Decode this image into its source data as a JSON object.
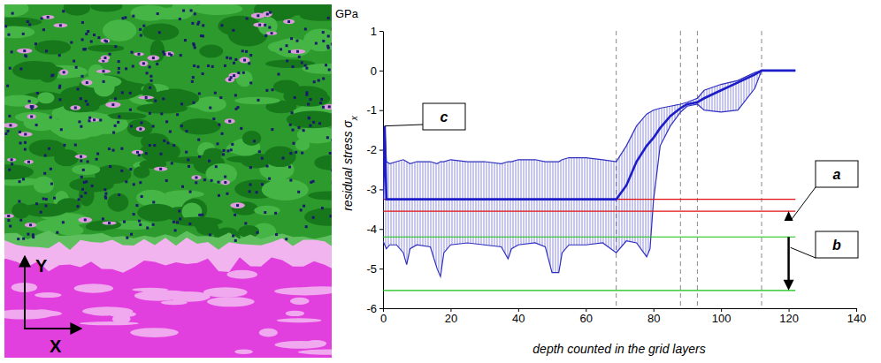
{
  "chart_data": {
    "type": "line",
    "ylabel": {
      "text": "residual stress σ",
      "subscript": "x"
    },
    "y_unit": "GPa",
    "xlabel": "depth counted in the grid layers",
    "xlim": [
      0,
      140
    ],
    "xticks": [
      0,
      20,
      40,
      60,
      80,
      100,
      120,
      140
    ],
    "ylim": [
      -6,
      1
    ],
    "yticks": [
      -6,
      -5,
      -4,
      -3,
      -2,
      -1,
      0,
      1
    ],
    "x": [
      0,
      0.5,
      1,
      2,
      4,
      6,
      7,
      8,
      10,
      14,
      16,
      17,
      18,
      20,
      25,
      30,
      35,
      37,
      38,
      40,
      45,
      48,
      50,
      52,
      53,
      55,
      60,
      65,
      69,
      72,
      75,
      78,
      79,
      80,
      82,
      85,
      88,
      90,
      93,
      95,
      100,
      105,
      110,
      112,
      115,
      122
    ],
    "series": [
      {
        "color": "#1c1cc8",
        "line_style": "solid",
        "values": [
          -3.25,
          -1.4,
          -3.25,
          -3.25,
          -3.25,
          -3.25,
          -3.25,
          -3.25,
          -3.25,
          -3.25,
          -3.25,
          -3.25,
          -3.25,
          -3.25,
          -3.25,
          -3.25,
          -3.25,
          -3.25,
          -3.25,
          -3.25,
          -3.25,
          -3.25,
          -3.25,
          -3.25,
          -3.25,
          -3.25,
          -3.25,
          -3.25,
          -3.25,
          -2.9,
          -2.3,
          -1.9,
          -1.8,
          -1.7,
          -1.45,
          -1.15,
          -0.95,
          -0.85,
          -0.8,
          -0.7,
          -0.5,
          -0.3,
          -0.1,
          0,
          0,
          0
        ]
      }
    ],
    "range": {
      "color": "#3030c0",
      "upper": [
        -2.3,
        -1.4,
        -2.3,
        -2.35,
        -2.3,
        -2.25,
        -2.3,
        -2.35,
        -2.3,
        -2.3,
        -2.35,
        -2.3,
        -2.3,
        -2.25,
        -2.3,
        -2.3,
        -2.35,
        -2.3,
        -2.3,
        -2.25,
        -2.25,
        -2.3,
        -2.3,
        -2.3,
        -2.25,
        -2.2,
        -2.2,
        -2.25,
        -2.3,
        -1.9,
        -1.4,
        -1.1,
        -1.05,
        -1.0,
        -0.95,
        -0.9,
        -0.85,
        -0.8,
        -0.7,
        -0.5,
        -0.35,
        -0.25,
        -0.05,
        0,
        0,
        0
      ],
      "lower": [
        -4.3,
        -4.4,
        -4.5,
        -4.4,
        -4.4,
        -4.6,
        -4.9,
        -4.5,
        -4.4,
        -4.45,
        -5.0,
        -5.2,
        -4.6,
        -4.4,
        -4.35,
        -4.4,
        -4.45,
        -4.75,
        -4.5,
        -4.4,
        -4.35,
        -4.45,
        -5.1,
        -5.1,
        -4.6,
        -4.4,
        -4.4,
        -4.35,
        -4.6,
        -4.3,
        -4.35,
        -4.7,
        -4.5,
        -3.3,
        -1.9,
        -1.4,
        -1.05,
        -0.9,
        -0.85,
        -1.0,
        -1.05,
        -1.0,
        -0.45,
        0,
        0,
        0
      ]
    },
    "vlines": [
      69,
      88,
      93,
      112
    ],
    "hlines": [
      {
        "value": -3.25,
        "color": "#e01010"
      },
      {
        "value": -3.55,
        "color": "#e01010"
      },
      {
        "value": -4.2,
        "color": "#10c010"
      },
      {
        "value": -5.55,
        "color": "#10c010"
      }
    ],
    "annotations": [
      {
        "text": "c",
        "x": 0.5,
        "y": -1.4
      },
      {
        "text": "a",
        "x": 120,
        "y": -3.55
      },
      {
        "text": "b",
        "x": 120,
        "y": -4.2
      }
    ]
  },
  "image": {
    "x_label": "X",
    "y_label": "Y"
  }
}
